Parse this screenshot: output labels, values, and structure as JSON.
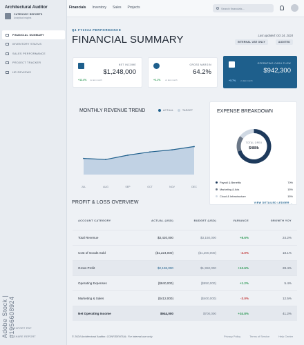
{
  "app": {
    "title": "Architectural Auditor",
    "category_title": "CATEGORY REPORTS",
    "category_subtitle": "Analytical insights"
  },
  "sidebar": {
    "items": [
      {
        "label": "FINANCIAL SUMMARY",
        "icon": "chart-icon",
        "active": true
      },
      {
        "label": "INVENTORY STATUS",
        "icon": "box-icon"
      },
      {
        "label": "SALES PERFORMANCE",
        "icon": "trend-icon"
      },
      {
        "label": "PROJECT TRACKER",
        "icon": "tracker-icon"
      },
      {
        "label": "HR REVIEWS",
        "icon": "people-icon"
      }
    ],
    "export": "EXPORT PDF",
    "share": "SHARE REPORT"
  },
  "watermark": {
    "stock_id": "Adobe Stock | #1956608924"
  },
  "topnav": {
    "tabs": [
      "Financials",
      "Inventory",
      "Sales",
      "Projects"
    ],
    "active": "Financials",
    "search_placeholder": "Search financials..."
  },
  "header": {
    "eyebrow": "Q4 FY2024 PERFORMANCE",
    "title": "FINANCIAL SUMMARY",
    "updated": "Last updated: Oct 24, 2024",
    "badges": [
      "INTERNAL USE ONLY",
      "AUDITED"
    ]
  },
  "kpis": [
    {
      "label": "NET INCOME",
      "value": "$1,248,000",
      "delta": "+12.4%",
      "comp": "vs last month"
    },
    {
      "label": "GROSS MARGIN",
      "value": "64.2%",
      "delta": "+2.1%",
      "comp": "vs last month"
    },
    {
      "label": "OPERATING CASH FLOW",
      "value": "$942,300",
      "delta": "+5.7%",
      "comp": "vs last month"
    }
  ],
  "revenue": {
    "title": "MONTHLY REVENUE TREND",
    "legend": [
      "ACTUAL",
      "TARGET"
    ]
  },
  "chart_data": {
    "type": "area",
    "title": "MONTHLY REVENUE TREND",
    "categories": [
      "JUL",
      "AUG",
      "SEP",
      "OCT",
      "NOV",
      "DEC"
    ],
    "series": [
      {
        "name": "ACTUAL",
        "values": [
          30,
          28,
          36,
          42,
          46,
          52
        ]
      }
    ],
    "ylim": [
      0,
      100
    ],
    "grid": false
  },
  "expenses": {
    "title": "EXPENSE BREAKDOWN",
    "center_label": "TOTAL OPEX",
    "center_value": "$480k",
    "items": [
      {
        "label": "Payroll & Benefits",
        "pct": "70%",
        "value": 70,
        "color": "#1e3a5c"
      },
      {
        "label": "Marketing & Ads",
        "pct": "15%",
        "value": 15,
        "color": "#6b7787"
      },
      {
        "label": "Cloud & Infrastructure",
        "pct": "15%",
        "value": 15,
        "color": "#cfd8e3"
      }
    ]
  },
  "pl": {
    "title": "PROFIT & LOSS OVERVIEW",
    "view_link": "VIEW DETAILED LEDGER",
    "headers": [
      "ACCOUNT CATEGORY",
      "ACTUAL (USD)",
      "BUDGET (USD)",
      "VARIANCE",
      "GROWTH YOY"
    ],
    "rows": [
      {
        "cat": "Total Revenue",
        "actual": "$3,420,000",
        "budget": "$3,150,000",
        "var": "+8.6%",
        "growth": "24.2%"
      },
      {
        "cat": "Cost of Goods Sold",
        "actual": "($1,224,000)",
        "budget": "($1,200,000)",
        "var": "-2.0%",
        "growth": "18.1%"
      },
      {
        "cat": "Gross Profit",
        "actual": "$2,196,000",
        "budget": "$1,950,000",
        "var": "+12.6%",
        "growth": "28.4%"
      },
      {
        "cat": "Operating Expenses",
        "actual": "($840,000)",
        "budget": "($850,000)",
        "var": "+1.2%",
        "growth": "5.4%"
      },
      {
        "cat": "Marketing & Sales",
        "actual": "($412,000)",
        "budget": "($400,000)",
        "var": "-3.0%",
        "growth": "12.5%"
      },
      {
        "cat": "Net Operating Income",
        "actual": "$944,000",
        "budget": "$700,000",
        "var": "+34.8%",
        "growth": "41.2%"
      }
    ]
  },
  "footer": {
    "text": "© 2024 Architectural Auditor. CONFIDENTIAL: For internal use only.",
    "links": [
      "Privacy Policy",
      "Terms of Service",
      "Help Center"
    ]
  }
}
